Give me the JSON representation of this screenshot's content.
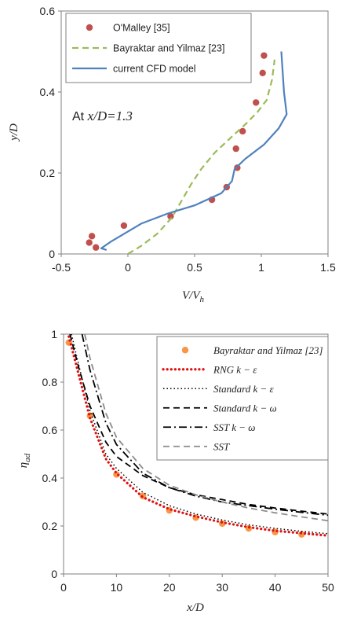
{
  "chart_data": [
    {
      "type": "line",
      "title": "",
      "xlabel": "V/V_h",
      "ylabel": "y/D",
      "xlim": [
        -0.5,
        1.5
      ],
      "ylim": [
        0,
        0.6
      ],
      "xticks": [
        -0.5,
        0,
        0.5,
        1,
        1.5
      ],
      "yticks": [
        0,
        0.2,
        0.4,
        0.6
      ],
      "xtick_labels": [
        "-0.5",
        "0",
        "0.5",
        "1",
        "1.5"
      ],
      "ytick_labels": [
        "0",
        "0.2",
        "0.4",
        "0.6"
      ],
      "grid": false,
      "legend_position": "top-left",
      "annotation": {
        "prefix": "At ",
        "value": "x/D=1.3"
      },
      "series": [
        {
          "name": "O'Malley [35]",
          "kind": "scatter",
          "color": "#C0504D",
          "points": [
            [
              -0.29,
              0.028
            ],
            [
              -0.27,
              0.044
            ],
            [
              -0.24,
              0.016
            ],
            [
              -0.03,
              0.07
            ],
            [
              0.32,
              0.093
            ],
            [
              0.63,
              0.134
            ],
            [
              0.74,
              0.165
            ],
            [
              0.82,
              0.213
            ],
            [
              0.81,
              0.26
            ],
            [
              0.86,
              0.303
            ],
            [
              0.96,
              0.374
            ],
            [
              1.01,
              0.447
            ],
            [
              1.02,
              0.49
            ]
          ]
        },
        {
          "name": "Bayraktar and Yilmaz [23]",
          "kind": "line",
          "dash": "dashed",
          "color": "#9BBB59",
          "points": [
            [
              0.0,
              0.0
            ],
            [
              0.1,
              0.02
            ],
            [
              0.22,
              0.05
            ],
            [
              0.33,
              0.09
            ],
            [
              0.4,
              0.13
            ],
            [
              0.47,
              0.17
            ],
            [
              0.55,
              0.21
            ],
            [
              0.65,
              0.25
            ],
            [
              0.78,
              0.29
            ],
            [
              0.88,
              0.32
            ],
            [
              0.97,
              0.35
            ],
            [
              1.04,
              0.38
            ],
            [
              1.08,
              0.43
            ],
            [
              1.1,
              0.48
            ]
          ]
        },
        {
          "name": "current CFD model",
          "kind": "line",
          "dash": "solid",
          "color": "#4F81BD",
          "points": [
            [
              -0.16,
              0.01
            ],
            [
              -0.2,
              0.014
            ],
            [
              -0.13,
              0.03
            ],
            [
              0.1,
              0.075
            ],
            [
              0.3,
              0.1
            ],
            [
              0.5,
              0.12
            ],
            [
              0.7,
              0.15
            ],
            [
              0.78,
              0.18
            ],
            [
              0.8,
              0.21
            ],
            [
              0.88,
              0.235
            ],
            [
              1.02,
              0.27
            ],
            [
              1.13,
              0.31
            ],
            [
              1.19,
              0.345
            ],
            [
              1.17,
              0.4
            ],
            [
              1.16,
              0.45
            ],
            [
              1.15,
              0.5
            ]
          ]
        }
      ]
    },
    {
      "type": "line",
      "title": "",
      "xlabel": "x/D",
      "ylabel": "η_ad",
      "xlim": [
        0,
        50
      ],
      "ylim": [
        0,
        1
      ],
      "xticks": [
        0,
        10,
        20,
        30,
        40,
        50
      ],
      "yticks": [
        0,
        0.2,
        0.4,
        0.6,
        0.8,
        1
      ],
      "xtick_labels": [
        "0",
        "10",
        "20",
        "30",
        "40",
        "50"
      ],
      "ytick_labels": [
        "0",
        "0.2",
        "0.4",
        "0.6",
        "0.8",
        "1"
      ],
      "grid": false,
      "legend_position": "top-right",
      "series": [
        {
          "name": "Bayraktar and Yilmaz [23]",
          "kind": "scatter",
          "color": "#F79646",
          "points": [
            [
              1,
              0.965
            ],
            [
              5,
              0.66
            ],
            [
              10,
              0.415
            ],
            [
              15,
              0.325
            ],
            [
              20,
              0.265
            ],
            [
              25,
              0.235
            ],
            [
              30,
              0.21
            ],
            [
              35,
              0.19
            ],
            [
              40,
              0.175
            ],
            [
              45,
              0.165
            ]
          ]
        },
        {
          "name": "RNG k − ε",
          "kind": "line",
          "dash": "dotted-thick",
          "color": "#E01010",
          "points": [
            [
              1,
              0.99
            ],
            [
              3,
              0.82
            ],
            [
              5,
              0.65
            ],
            [
              8,
              0.48
            ],
            [
              10,
              0.42
            ],
            [
              15,
              0.32
            ],
            [
              20,
              0.27
            ],
            [
              25,
              0.24
            ],
            [
              30,
              0.215
            ],
            [
              35,
              0.195
            ],
            [
              40,
              0.18
            ],
            [
              45,
              0.17
            ],
            [
              50,
              0.16
            ]
          ]
        },
        {
          "name": "Standard k − ε",
          "kind": "line",
          "dash": "dotted",
          "color": "#000000",
          "points": [
            [
              1.5,
              1.0
            ],
            [
              3,
              0.86
            ],
            [
              5,
              0.68
            ],
            [
              8,
              0.5
            ],
            [
              10,
              0.44
            ],
            [
              15,
              0.34
            ],
            [
              20,
              0.285
            ],
            [
              25,
              0.25
            ],
            [
              30,
              0.225
            ],
            [
              35,
              0.205
            ],
            [
              40,
              0.19
            ],
            [
              45,
              0.178
            ],
            [
              50,
              0.168
            ]
          ]
        },
        {
          "name": "Standard k − ω",
          "kind": "line",
          "dash": "dashed",
          "color": "#000000",
          "points": [
            [
              1.2,
              1.0
            ],
            [
              3,
              0.85
            ],
            [
              5,
              0.7
            ],
            [
              8,
              0.55
            ],
            [
              10,
              0.49
            ],
            [
              15,
              0.41
            ],
            [
              20,
              0.36
            ],
            [
              25,
              0.33
            ],
            [
              30,
              0.31
            ],
            [
              35,
              0.29
            ],
            [
              40,
              0.275
            ],
            [
              45,
              0.262
            ],
            [
              50,
              0.25
            ]
          ]
        },
        {
          "name": "SST k − ω",
          "kind": "line",
          "dash": "dash-dot",
          "color": "#000000",
          "points": [
            [
              3.5,
              1.0
            ],
            [
              5,
              0.85
            ],
            [
              8,
              0.63
            ],
            [
              10,
              0.54
            ],
            [
              15,
              0.42
            ],
            [
              20,
              0.36
            ],
            [
              25,
              0.325
            ],
            [
              30,
              0.3
            ],
            [
              35,
              0.285
            ],
            [
              40,
              0.27
            ],
            [
              45,
              0.257
            ],
            [
              50,
              0.245
            ]
          ]
        },
        {
          "name": "SST",
          "kind": "line",
          "dash": "dashed",
          "color": "#8C8C8C",
          "points": [
            [
              4,
              1.0
            ],
            [
              5,
              0.9
            ],
            [
              8,
              0.67
            ],
            [
              10,
              0.57
            ],
            [
              15,
              0.44
            ],
            [
              20,
              0.37
            ],
            [
              25,
              0.33
            ],
            [
              30,
              0.3
            ],
            [
              35,
              0.275
            ],
            [
              40,
              0.255
            ],
            [
              45,
              0.238
            ],
            [
              50,
              0.222
            ]
          ]
        }
      ]
    }
  ]
}
